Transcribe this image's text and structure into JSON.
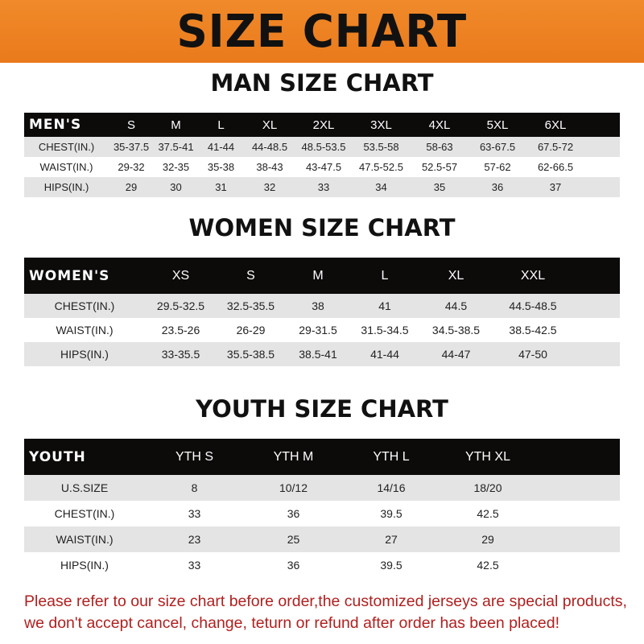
{
  "title": "SIZE CHART",
  "men": {
    "heading": "MAN SIZE CHART",
    "corner": "MEN'S",
    "sizes": [
      "S",
      "M",
      "L",
      "XL",
      "2XL",
      "3XL",
      "4XL",
      "5XL",
      "6XL"
    ],
    "rows": [
      {
        "label": "CHEST(IN.)",
        "values": [
          "35-37.5",
          "37.5-41",
          "41-44",
          "44-48.5",
          "48.5-53.5",
          "53.5-58",
          "58-63",
          "63-67.5",
          "67.5-72"
        ]
      },
      {
        "label": "WAIST(IN.)",
        "values": [
          "29-32",
          "32-35",
          "35-38",
          "38-43",
          "43-47.5",
          "47.5-52.5",
          "52.5-57",
          "57-62",
          "62-66.5"
        ]
      },
      {
        "label": "HIPS(IN.)",
        "values": [
          "29",
          "30",
          "31",
          "32",
          "33",
          "34",
          "35",
          "36",
          "37"
        ]
      }
    ]
  },
  "women": {
    "heading": "WOMEN SIZE CHART",
    "corner": "WOMEN'S",
    "sizes": [
      "XS",
      "S",
      "M",
      "L",
      "XL",
      "XXL"
    ],
    "rows": [
      {
        "label": "CHEST(IN.)",
        "values": [
          "29.5-32.5",
          "32.5-35.5",
          "38",
          "41",
          "44.5",
          "44.5-48.5"
        ]
      },
      {
        "label": "WAIST(IN.)",
        "values": [
          "23.5-26",
          "26-29",
          "29-31.5",
          "31.5-34.5",
          "34.5-38.5",
          "38.5-42.5"
        ]
      },
      {
        "label": "HIPS(IN.)",
        "values": [
          "33-35.5",
          "35.5-38.5",
          "38.5-41",
          "41-44",
          "44-47",
          "47-50"
        ]
      }
    ]
  },
  "youth": {
    "heading": "YOUTH SIZE CHART",
    "corner": "YOUTH",
    "sizes": [
      "YTH S",
      "YTH M",
      "YTH L",
      "YTH XL"
    ],
    "rows": [
      {
        "label": "U.S.SIZE",
        "values": [
          "8",
          "10/12",
          "14/16",
          "18/20"
        ]
      },
      {
        "label": "CHEST(IN.)",
        "values": [
          "33",
          "36",
          "39.5",
          "42.5"
        ]
      },
      {
        "label": "WAIST(IN.)",
        "values": [
          "23",
          "25",
          "27",
          "29"
        ]
      },
      {
        "label": "HIPS(IN.)",
        "values": [
          "33",
          "36",
          "39.5",
          "42.5"
        ]
      }
    ]
  },
  "note": "Please refer to our size chart before order,the customized jerseys are special products, we don't accept cancel, change, teturn or refund after order has been placed!",
  "colors": {
    "banner": "#ee8224",
    "header_row": "#0d0a0a",
    "note": "#b0201f"
  }
}
